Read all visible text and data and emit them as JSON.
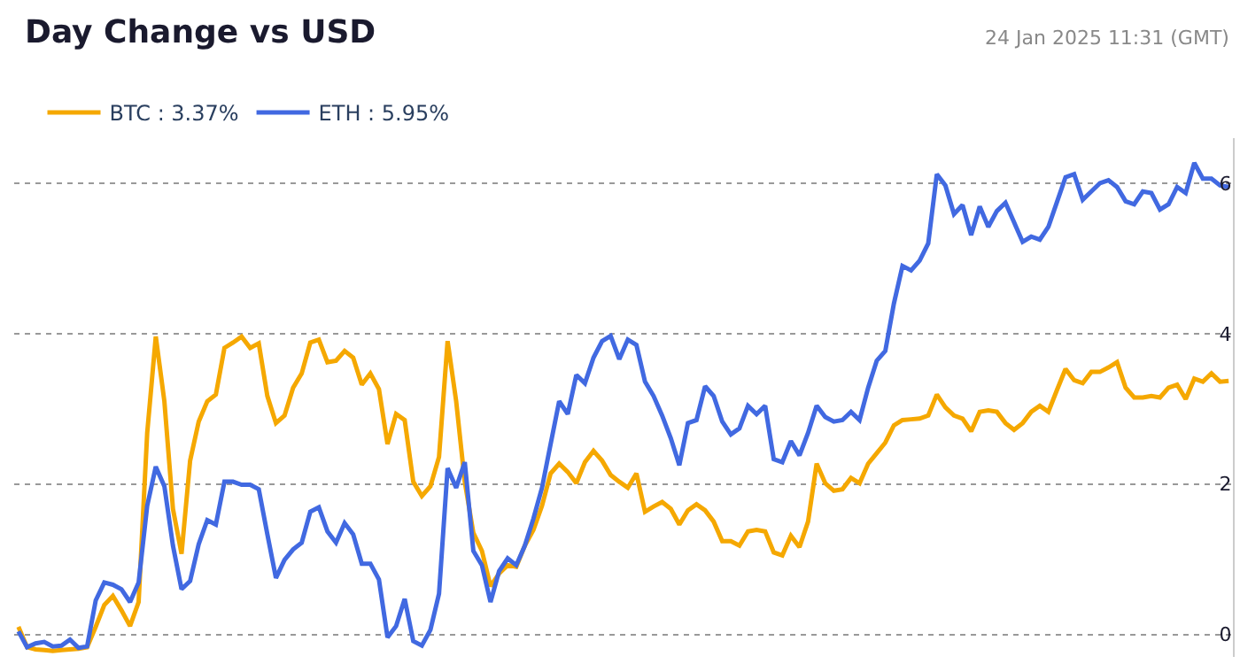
{
  "chart_data": {
    "type": "line",
    "title": "Day Change vs USD",
    "subtitle": "24 Jan 2025 11:31 (GMT)",
    "categories": [
      null,
      null,
      null,
      null,
      null,
      null,
      null,
      null,
      null,
      null,
      null,
      null,
      null,
      null,
      null,
      null,
      null,
      null,
      null,
      null,
      null,
      null,
      null,
      null,
      null,
      null,
      null,
      null,
      null,
      null,
      null,
      null,
      null,
      null,
      null,
      null,
      null,
      null,
      null,
      null,
      null,
      null,
      null,
      null,
      null,
      null,
      null,
      null,
      null,
      null,
      null,
      null,
      null,
      null,
      null,
      null,
      null,
      null,
      null,
      null,
      null,
      null,
      null,
      null,
      null,
      null,
      null,
      null,
      null,
      null,
      null,
      null,
      null,
      null,
      null,
      null,
      null,
      null,
      null,
      null,
      null,
      null,
      null,
      null,
      null,
      null,
      null,
      null,
      null,
      null,
      null,
      null,
      null,
      null,
      null,
      null,
      null,
      null,
      null,
      null,
      null,
      null,
      null,
      null,
      null,
      null,
      null,
      null,
      null,
      null,
      null,
      null,
      null,
      null,
      null,
      null,
      null,
      null,
      null,
      null,
      null,
      null,
      null,
      null,
      null,
      null,
      null,
      null,
      null,
      null,
      null,
      null,
      null,
      null,
      null,
      null,
      null,
      null,
      null,
      null,
      null,
      null
    ],
    "ylim": [
      -0.3,
      6.6
    ],
    "yticks": [
      0,
      2,
      4,
      6
    ],
    "tick_labels": "y",
    "grid": "y",
    "legend": "top left",
    "marker": "none",
    "line_style": "solid",
    "series": [
      {
        "name": "BTC : 3.37%",
        "color": "#f5a800",
        "values": [
          0.1,
          -0.17,
          -0.2,
          -0.21,
          -0.22,
          -0.21,
          -0.2,
          -0.19,
          -0.17,
          0.1,
          0.39,
          0.51,
          0.32,
          0.11,
          0.43,
          2.68,
          3.96,
          3.1,
          1.67,
          1.07,
          2.31,
          2.83,
          3.1,
          3.19,
          3.81,
          3.88,
          3.96,
          3.81,
          3.87,
          3.17,
          2.81,
          2.91,
          3.28,
          3.47,
          3.88,
          3.92,
          3.62,
          3.64,
          3.77,
          3.68,
          3.32,
          3.47,
          3.26,
          2.53,
          2.93,
          2.85,
          2.03,
          1.84,
          1.97,
          2.36,
          3.9,
          3.1,
          2.03,
          1.35,
          1.11,
          0.64,
          0.81,
          0.92,
          0.9,
          1.18,
          1.39,
          1.71,
          2.14,
          2.27,
          2.16,
          2.01,
          2.29,
          2.44,
          2.31,
          2.12,
          2.03,
          1.95,
          2.14,
          1.63,
          1.7,
          1.76,
          1.67,
          1.46,
          1.65,
          1.73,
          1.65,
          1.5,
          1.24,
          1.24,
          1.18,
          1.37,
          1.39,
          1.37,
          1.09,
          1.05,
          1.31,
          1.16,
          1.5,
          2.27,
          2.01,
          1.91,
          1.93,
          2.08,
          2.01,
          2.27,
          2.41,
          2.55,
          2.78,
          2.85,
          2.86,
          2.87,
          2.91,
          3.19,
          3.02,
          2.91,
          2.87,
          2.7,
          2.96,
          2.98,
          2.96,
          2.81,
          2.72,
          2.81,
          2.96,
          3.04,
          2.96,
          3.25,
          3.53,
          3.38,
          3.34,
          3.49,
          3.49,
          3.55,
          3.62,
          3.28,
          3.15,
          3.15,
          3.17,
          3.15,
          3.28,
          3.32,
          3.13,
          3.4,
          3.36,
          3.47,
          3.36,
          3.37
        ]
      },
      {
        "name": "ETH : 5.95%",
        "color": "#4169e1",
        "values": [
          0.04,
          -0.17,
          -0.12,
          -0.1,
          -0.16,
          -0.15,
          -0.07,
          -0.18,
          -0.16,
          0.45,
          0.69,
          0.66,
          0.6,
          0.43,
          0.69,
          1.71,
          2.23,
          1.97,
          1.18,
          0.6,
          0.71,
          1.2,
          1.52,
          1.46,
          2.03,
          2.03,
          1.99,
          1.99,
          1.93,
          1.33,
          0.75,
          0.99,
          1.13,
          1.22,
          1.63,
          1.69,
          1.37,
          1.22,
          1.48,
          1.33,
          0.94,
          0.94,
          0.73,
          -0.04,
          0.11,
          0.47,
          -0.09,
          -0.15,
          0.06,
          0.54,
          2.21,
          1.95,
          2.29,
          1.11,
          0.92,
          0.43,
          0.84,
          1.01,
          0.92,
          1.18,
          1.54,
          1.95,
          2.53,
          3.1,
          2.93,
          3.45,
          3.34,
          3.68,
          3.9,
          3.97,
          3.66,
          3.92,
          3.85,
          3.36,
          3.17,
          2.91,
          2.61,
          2.25,
          2.81,
          2.85,
          3.3,
          3.17,
          2.83,
          2.66,
          2.74,
          3.04,
          2.93,
          3.04,
          2.33,
          2.29,
          2.57,
          2.38,
          2.68,
          3.04,
          2.89,
          2.83,
          2.85,
          2.96,
          2.85,
          3.28,
          3.64,
          3.77,
          4.4,
          4.9,
          4.84,
          4.97,
          5.2,
          6.12,
          5.97,
          5.59,
          5.71,
          5.31,
          5.69,
          5.42,
          5.63,
          5.74,
          5.48,
          5.22,
          5.29,
          5.25,
          5.42,
          5.75,
          6.08,
          6.12,
          5.78,
          5.89,
          6.0,
          6.04,
          5.95,
          5.76,
          5.72,
          5.89,
          5.87,
          5.65,
          5.72,
          5.95,
          5.87,
          6.27,
          6.06,
          6.06,
          5.97,
          5.95
        ]
      }
    ]
  }
}
